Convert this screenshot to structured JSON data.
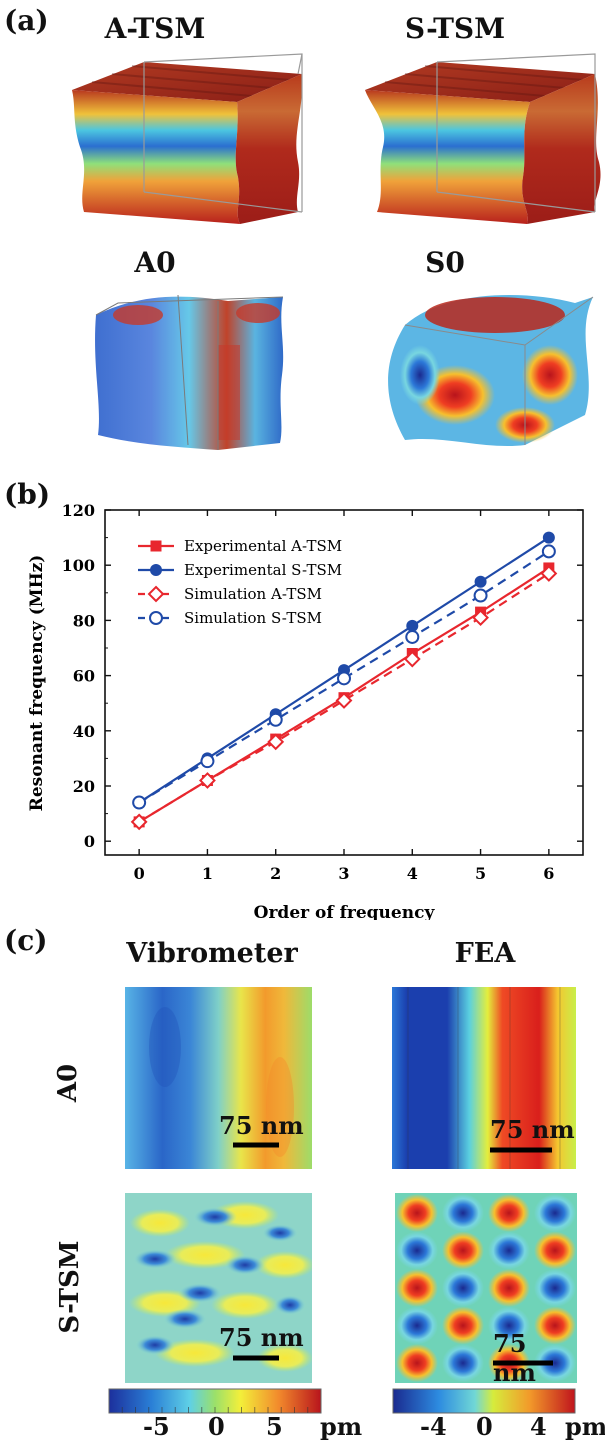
{
  "panel_a": {
    "label": "(a)",
    "titles": [
      "A-TSM",
      "S-TSM",
      "A0",
      "S0"
    ]
  },
  "panel_b": {
    "label": "(b)"
  },
  "panel_c": {
    "label": "(c)",
    "col_headers": [
      "Vibrometer",
      "FEA"
    ],
    "row_labels": [
      "A0",
      "S-TSM"
    ],
    "scale_bar": "75 nm",
    "colorbar_left": {
      "ticks": [
        "-5",
        "0",
        "5"
      ],
      "unit": "pm"
    },
    "colorbar_right": {
      "ticks": [
        "-4",
        "0",
        "4"
      ],
      "unit": "pm"
    }
  },
  "chart_data": {
    "type": "line",
    "title": "",
    "xlabel": "Order of frequency",
    "ylabel": "Resonant frequency (MHz)",
    "xlim": [
      -0.5,
      6.5
    ],
    "ylim": [
      -5,
      120
    ],
    "xticks": [
      "0",
      "1",
      "2",
      "3",
      "4",
      "5",
      "6"
    ],
    "yticks": [
      "0",
      "20",
      "40",
      "60",
      "80",
      "100",
      "120"
    ],
    "legend_position": "top-left",
    "x": [
      0,
      1,
      2,
      3,
      4,
      5,
      6
    ],
    "series": [
      {
        "name": "Experimental A-TSM",
        "values": [
          7,
          22,
          37,
          52,
          68,
          83,
          99
        ],
        "color": "#e8272e",
        "marker": "filled-square",
        "line": "solid"
      },
      {
        "name": "Experimental S-TSM",
        "values": [
          14,
          30,
          46,
          62,
          78,
          94,
          110
        ],
        "color": "#1f4aa8",
        "marker": "filled-circle",
        "line": "solid"
      },
      {
        "name": "Simulation A-TSM",
        "values": [
          7,
          22,
          36,
          51,
          66,
          81,
          97
        ],
        "color": "#e8272e",
        "marker": "open-diamond",
        "line": "dashed"
      },
      {
        "name": "Simulation S-TSM",
        "values": [
          14,
          29,
          44,
          59,
          74,
          89,
          105
        ],
        "color": "#1f4aa8",
        "marker": "open-circle",
        "line": "dashed"
      }
    ]
  }
}
